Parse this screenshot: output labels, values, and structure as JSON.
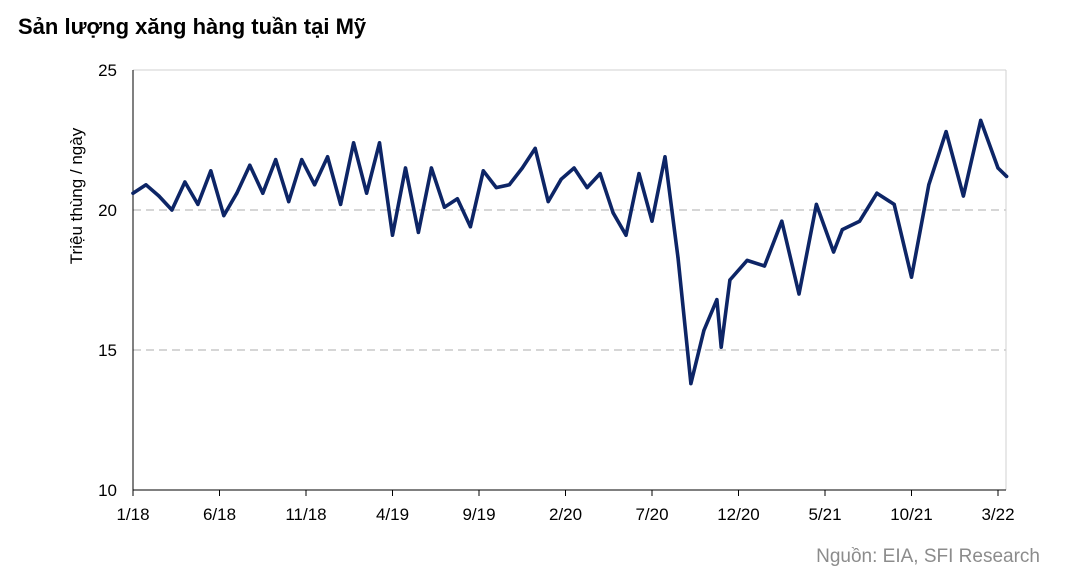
{
  "chart_data": {
    "type": "line",
    "title": "Sản lượng xăng hàng tuần tại Mỹ",
    "ylabel": "Triệu thùng / ngày",
    "xlabel": "",
    "ylim": [
      10,
      25
    ],
    "yticks": [
      "10",
      "15",
      "20",
      "25"
    ],
    "xticks": [
      "1/18",
      "6/18",
      "11/18",
      "4/19",
      "9/19",
      "2/20",
      "7/20",
      "12/20",
      "5/21",
      "10/21",
      "3/22"
    ],
    "grid": "horizontal dashed at 15 and 20",
    "series": [
      {
        "color": "#0d2566",
        "x": [
          0,
          0.75,
          1.5,
          2.25,
          3,
          3.75,
          4.5,
          5.25,
          6,
          6.75,
          7.5,
          8.25,
          9,
          9.75,
          10.5,
          11.25,
          12,
          12.75,
          13.5,
          14.25,
          15,
          15.75,
          16.5,
          17.25,
          18,
          18.75,
          19.5,
          20.25,
          21,
          21.75,
          22.5,
          23.25,
          24,
          24.75,
          25.5,
          26.25,
          27,
          27.75,
          28.5,
          29.25,
          30,
          30.75,
          31.5,
          32.25,
          33,
          33.75,
          34,
          34.5,
          35.5,
          36.5,
          37.5,
          38.5,
          39.5,
          40.5,
          41,
          42,
          43,
          44,
          45,
          46,
          47,
          48,
          49,
          50,
          50.5
        ],
        "y": [
          20.6,
          20.9,
          20.5,
          20.0,
          21.0,
          20.2,
          21.4,
          19.8,
          20.6,
          21.6,
          20.6,
          21.8,
          20.3,
          21.8,
          20.9,
          21.9,
          20.2,
          22.4,
          20.6,
          22.4,
          19.1,
          21.5,
          19.2,
          21.5,
          20.1,
          20.4,
          19.4,
          21.4,
          20.8,
          20.9,
          21.5,
          22.2,
          20.3,
          21.1,
          21.5,
          20.8,
          21.3,
          19.9,
          19.1,
          21.3,
          19.6,
          21.9,
          18.3,
          13.8,
          15.7,
          16.8,
          15.1,
          17.5,
          18.2,
          18.0,
          19.6,
          17.0,
          20.2,
          18.5,
          19.3,
          19.6,
          20.6,
          20.2,
          17.6,
          20.9,
          22.8,
          20.5,
          23.2,
          21.5,
          21.2
        ]
      }
    ]
  },
  "source": "Nguồn: EIA,  SFI Research"
}
